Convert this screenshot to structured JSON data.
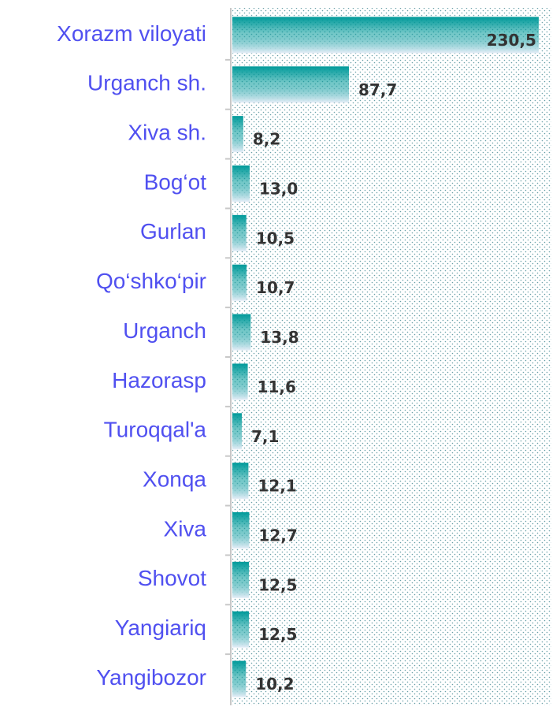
{
  "chart_data": {
    "type": "barh",
    "categories": [
      "Xorazm viloyati",
      "Urganch sh.",
      "Xiva sh.",
      "Bog‘ot",
      "Gurlan",
      "Qo‘shko‘pir",
      "Urganch",
      "Hazorasp",
      "Turoqqal'a",
      "Xonqa",
      "Xiva",
      "Shovot",
      "Yangiariq",
      "Yangibozor"
    ],
    "values": [
      230.5,
      87.7,
      8.2,
      13.0,
      10.5,
      10.7,
      13.8,
      11.6,
      7.1,
      12.1,
      12.7,
      12.5,
      12.5,
      10.2
    ],
    "value_labels": [
      "230,5",
      "87,7",
      "8,2",
      "13,0",
      "10,5",
      "10,7",
      "13,8",
      "11,6",
      "7,1",
      "12,1",
      "12,7",
      "12,5",
      "12,5",
      "10,2"
    ],
    "color": "#009a9a",
    "category_color": "#5050f0",
    "xlim": [
      0,
      240
    ]
  }
}
